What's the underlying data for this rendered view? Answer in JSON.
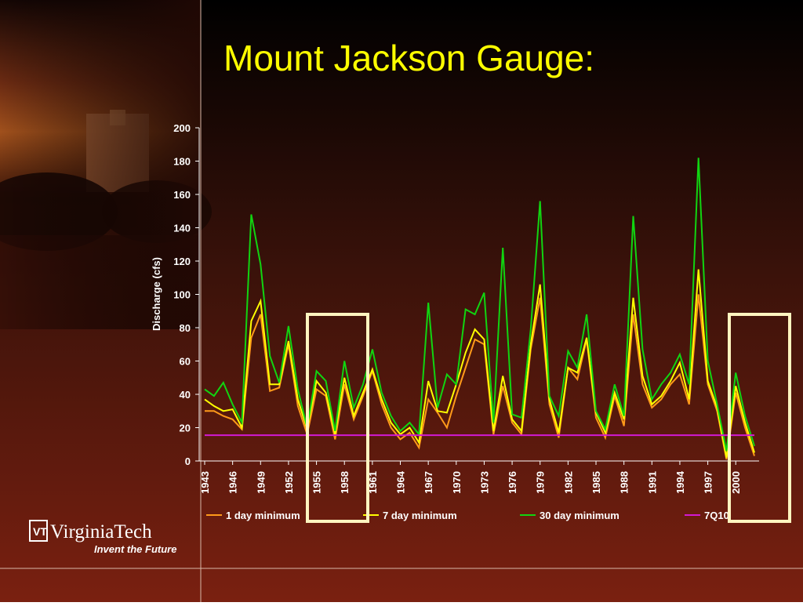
{
  "logo": {
    "name": "VirginiaTech",
    "tagline": "Invent the Future"
  },
  "chart_data": {
    "type": "line",
    "title": "Mount Jackson Gauge:",
    "y_label": "Discharge (cfs)",
    "x": [
      1943,
      1944,
      1945,
      1946,
      1947,
      1948,
      1949,
      1950,
      1951,
      1952,
      1953,
      1954,
      1955,
      1956,
      1957,
      1958,
      1959,
      1960,
      1961,
      1962,
      1963,
      1964,
      1965,
      1966,
      1967,
      1968,
      1969,
      1970,
      1971,
      1972,
      1973,
      1974,
      1975,
      1976,
      1977,
      1978,
      1979,
      1980,
      1981,
      1982,
      1983,
      1984,
      1985,
      1986,
      1987,
      1988,
      1989,
      1990,
      1991,
      1992,
      1993,
      1994,
      1995,
      1996,
      1997,
      1998,
      1999,
      2000,
      2001,
      2002
    ],
    "xlim": [
      1943,
      2002
    ],
    "xticks": [
      1943,
      1946,
      1949,
      1952,
      1955,
      1958,
      1961,
      1964,
      1967,
      1970,
      1973,
      1976,
      1979,
      1982,
      1985,
      1988,
      1991,
      1994,
      1997,
      2000
    ],
    "ylim": [
      0,
      200
    ],
    "yticks": [
      0,
      20,
      40,
      60,
      80,
      100,
      120,
      140,
      160,
      180,
      200
    ],
    "series": [
      {
        "name": "1 day minimum",
        "color": "#ff9a1a",
        "values": [
          30,
          30,
          27,
          25,
          19,
          74,
          88,
          42,
          44,
          70,
          33,
          16,
          43,
          39,
          13,
          46,
          25,
          39,
          54,
          34,
          20,
          13,
          17,
          8,
          37,
          29,
          20,
          39,
          56,
          73,
          70,
          16,
          45,
          23,
          16,
          67,
          98,
          34,
          14,
          56,
          49,
          73,
          26,
          14,
          39,
          21,
          88,
          46,
          32,
          37,
          46,
          52,
          34,
          100,
          46,
          30,
          1,
          41,
          20,
          3
        ]
      },
      {
        "name": "7 day minimum",
        "color": "#ffff00",
        "values": [
          37,
          33,
          30,
          31,
          20,
          84,
          96,
          46,
          46,
          72,
          37,
          19,
          48,
          41,
          16,
          50,
          27,
          41,
          55,
          37,
          23,
          16,
          20,
          11,
          48,
          30,
          29,
          46,
          65,
          79,
          73,
          18,
          51,
          25,
          18,
          70,
          106,
          37,
          17,
          56,
          53,
          74,
          29,
          17,
          41,
          25,
          98,
          51,
          34,
          39,
          48,
          59,
          37,
          115,
          48,
          32,
          2,
          45,
          23,
          5
        ]
      },
      {
        "name": "30 day minimum",
        "color": "#11d411",
        "values": [
          43,
          39,
          47,
          34,
          23,
          148,
          118,
          63,
          47,
          81,
          43,
          20,
          54,
          48,
          18,
          60,
          32,
          46,
          67,
          41,
          27,
          18,
          23,
          16,
          95,
          32,
          52,
          46,
          91,
          88,
          101,
          23,
          128,
          28,
          26,
          79,
          156,
          39,
          27,
          66,
          56,
          88,
          30,
          19,
          46,
          27,
          147,
          67,
          37,
          46,
          53,
          64,
          46,
          182,
          60,
          34,
          6,
          53,
          27,
          9
        ]
      },
      {
        "name": "7Q10",
        "color": "#d21ad2",
        "values": [
          15.5,
          15.5,
          15.5,
          15.5,
          15.5,
          15.5,
          15.5,
          15.5,
          15.5,
          15.5,
          15.5,
          15.5,
          15.5,
          15.5,
          15.5,
          15.5,
          15.5,
          15.5,
          15.5,
          15.5,
          15.5,
          15.5,
          15.5,
          15.5,
          15.5,
          15.5,
          15.5,
          15.5,
          15.5,
          15.5,
          15.5,
          15.5,
          15.5,
          15.5,
          15.5,
          15.5,
          15.5,
          15.5,
          15.5,
          15.5,
          15.5,
          15.5,
          15.5,
          15.5,
          15.5,
          15.5,
          15.5,
          15.5,
          15.5,
          15.5,
          15.5,
          15.5,
          15.5,
          15.5,
          15.5,
          15.5,
          15.5,
          15.5,
          15.5,
          15.5
        ]
      }
    ]
  }
}
